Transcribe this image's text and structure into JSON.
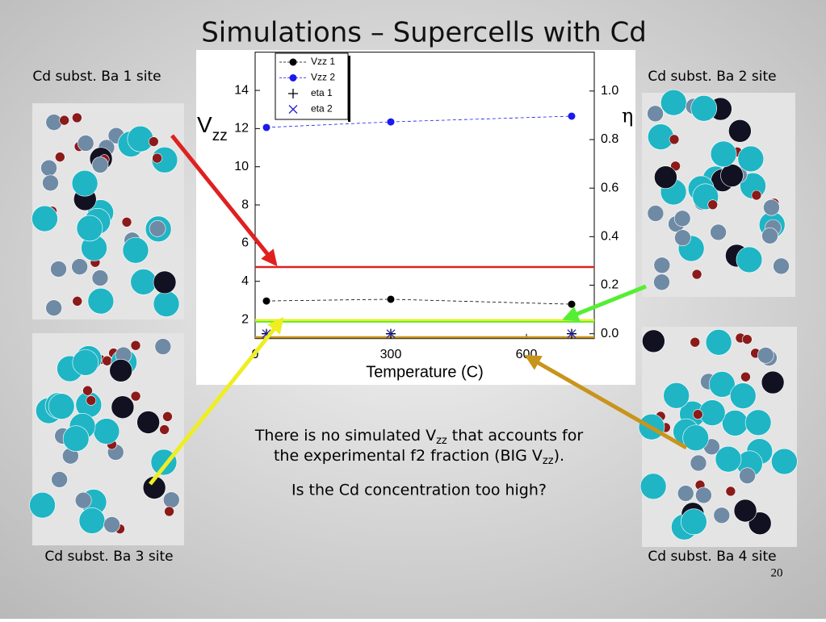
{
  "slide": {
    "title": "Simulations – Supercells with Cd",
    "captions": [
      "Cd subst. Ba 1 site",
      "Cd subst. Ba 2 site",
      "Cd subst. Ba 3 site",
      "Cd subst. Ba 4 site"
    ],
    "note_lines": [
      [
        "There is no simulated V",
        "zz",
        " that accounts for"
      ],
      [
        "the experimental f2 fraction (BIG V",
        "zz",
        ")."
      ]
    ],
    "question": "Is the Cd concentration too high?",
    "page_number": "20"
  },
  "chart_data": {
    "type": "line",
    "xlabel": "Temperature (C)",
    "ylabel": "V",
    "ylabel_sub": "zz",
    "y2label": "η",
    "xlim": [
      0,
      750
    ],
    "xticks": [
      0,
      300,
      600
    ],
    "ylim": [
      1,
      16
    ],
    "yticks": [
      2,
      4,
      6,
      8,
      10,
      12,
      14
    ],
    "y2lim": [
      -0.02,
      1.16
    ],
    "y2ticks": [
      {
        "value": 0,
        "label": "0.0"
      },
      0.2,
      0.4,
      0.6,
      0.8,
      {
        "value": 1,
        "label": "1.0"
      }
    ],
    "x": [
      25,
      300,
      700
    ],
    "legend": "upper left",
    "series": [
      {
        "name": "Vzz 1",
        "color": "#000000",
        "marker": "dot",
        "values": [
          2.97,
          3.06,
          2.8
        ]
      },
      {
        "name": "Vzz 2",
        "color": "#1a1aee",
        "marker": "dot",
        "values": [
          12.06,
          12.35,
          12.65
        ]
      },
      {
        "name": "eta 1",
        "color": "#000000",
        "marker": "plus",
        "axis": "y2",
        "values": [
          0,
          0,
          0
        ]
      },
      {
        "name": "eta 2",
        "color": "#2222cc",
        "marker": "x",
        "axis": "y2",
        "values": [
          0,
          0,
          0
        ]
      }
    ],
    "reference_lines": [
      {
        "color": "#e02020",
        "value": 4.75
      },
      {
        "color": "#55ee33",
        "value": 1.92
      },
      {
        "color": "#eeee22",
        "value": 1.97
      },
      {
        "color": "#c8941a",
        "value": 1.07
      }
    ]
  }
}
